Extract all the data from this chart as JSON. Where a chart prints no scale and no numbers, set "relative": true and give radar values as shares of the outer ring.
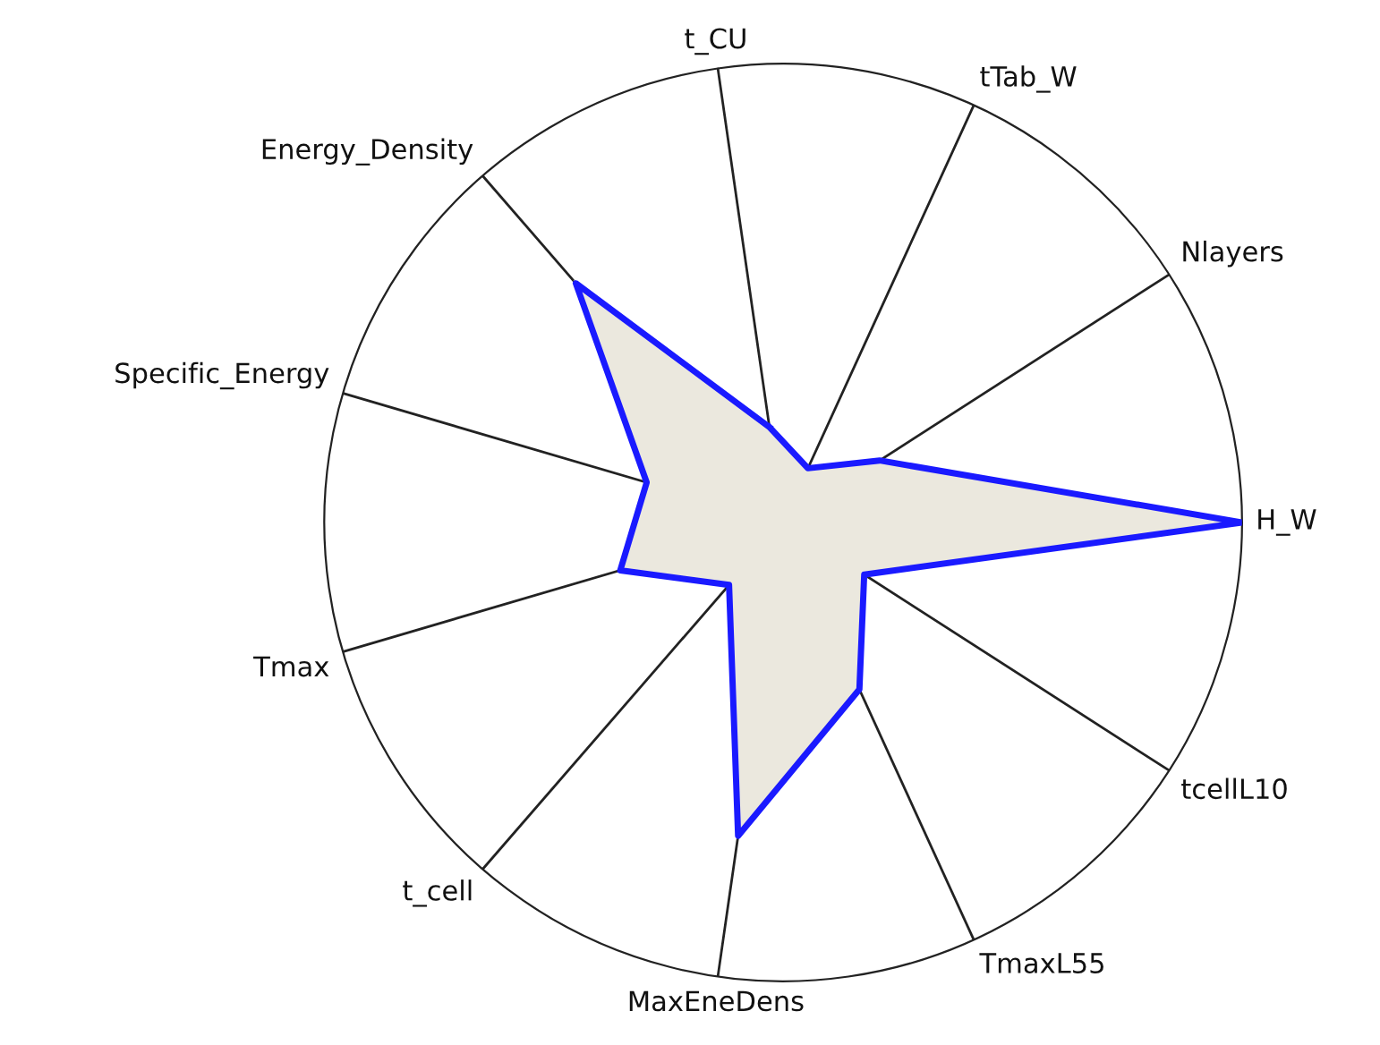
{
  "chart_data": {
    "type": "radar",
    "relative": true,
    "grid": true,
    "marker": "none",
    "categories": [
      "t_CU",
      "tTab_W",
      "Nlayers",
      "H_W",
      "tcellL10",
      "TmaxL55",
      "MaxEneDens",
      "t_cell",
      "Tmax",
      "Specific_Energy",
      "Energy_Density"
    ],
    "series": [
      {
        "color": "#1a1aff",
        "values": [
          0.21,
          0.13,
          0.25,
          1.0,
          0.21,
          0.4,
          0.69,
          0.18,
          0.37,
          0.31,
          0.69
        ]
      }
    ]
  }
}
